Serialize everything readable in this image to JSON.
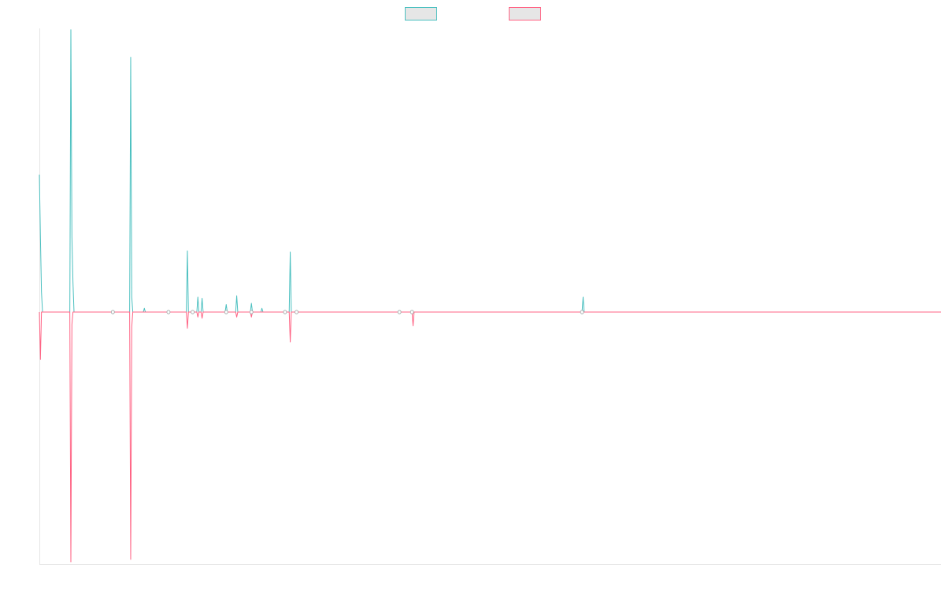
{
  "chart_data": {
    "type": "line",
    "title": "",
    "xlabel": "",
    "ylabel": "",
    "x_count": 860,
    "ylim": [
      -1,
      1
    ],
    "grid": false,
    "legend_position": "top",
    "series": [
      {
        "name": "",
        "color": "#4bc0c0",
        "fill": "#e6e6e6",
        "values": [
          [
            0,
            0.55
          ],
          [
            1,
            0.3
          ],
          [
            2,
            0.08
          ],
          [
            3,
            0.0
          ],
          [
            29,
            0.0
          ],
          [
            30,
            1.13
          ],
          [
            31,
            0.3
          ],
          [
            32,
            0.12
          ],
          [
            33,
            0.0
          ],
          [
            86,
            0.0
          ],
          [
            87,
            1.02
          ],
          [
            88,
            0.06
          ],
          [
            89,
            0.0
          ],
          [
            99,
            0.0
          ],
          [
            100,
            0.015
          ],
          [
            101,
            0.0
          ],
          [
            140,
            0.0
          ],
          [
            141,
            0.245
          ],
          [
            142,
            0.0
          ],
          [
            150,
            0.0
          ],
          [
            151,
            0.06
          ],
          [
            152,
            0.0
          ],
          [
            154,
            0.0
          ],
          [
            155,
            0.055
          ],
          [
            156,
            0.0
          ],
          [
            177,
            0.0
          ],
          [
            178,
            0.03
          ],
          [
            179,
            0.0
          ],
          [
            187,
            0.0
          ],
          [
            188,
            0.065
          ],
          [
            189,
            0.0
          ],
          [
            201,
            0.0
          ],
          [
            202,
            0.035
          ],
          [
            203,
            0.0
          ],
          [
            211,
            0.0
          ],
          [
            212,
            0.015
          ],
          [
            213,
            0.0
          ],
          [
            237,
            0.0
          ],
          [
            239,
            0.24
          ],
          [
            241,
            0.0
          ],
          [
            517,
            0.0
          ],
          [
            518,
            0.06
          ],
          [
            519,
            0.0
          ]
        ]
      },
      {
        "name": "",
        "color": "#ff6384",
        "fill": "#e6e6e6",
        "values": [
          [
            0,
            0.0
          ],
          [
            1,
            -0.19
          ],
          [
            2,
            0.0
          ],
          [
            29,
            0.0
          ],
          [
            30,
            -1.0
          ],
          [
            31,
            -0.05
          ],
          [
            32,
            0.0
          ],
          [
            86,
            0.0
          ],
          [
            87,
            -0.99
          ],
          [
            88,
            -0.06
          ],
          [
            89,
            0.0
          ],
          [
            140,
            0.0
          ],
          [
            141,
            -0.065
          ],
          [
            142,
            0.0
          ],
          [
            150,
            0.0
          ],
          [
            151,
            -0.02
          ],
          [
            152,
            0.0
          ],
          [
            154,
            0.0
          ],
          [
            155,
            -0.025
          ],
          [
            156,
            0.0
          ],
          [
            187,
            0.0
          ],
          [
            188,
            -0.02
          ],
          [
            189,
            0.0
          ],
          [
            201,
            0.0
          ],
          [
            202,
            -0.02
          ],
          [
            203,
            0.0
          ],
          [
            237,
            0.0
          ],
          [
            239,
            -0.12
          ],
          [
            241,
            0.0
          ],
          [
            355,
            0.0
          ],
          [
            356,
            -0.055
          ],
          [
            357,
            0.0
          ]
        ]
      }
    ],
    "point_markers": [
      70,
      123,
      146,
      178,
      202,
      234,
      245,
      343,
      355,
      517
    ]
  }
}
